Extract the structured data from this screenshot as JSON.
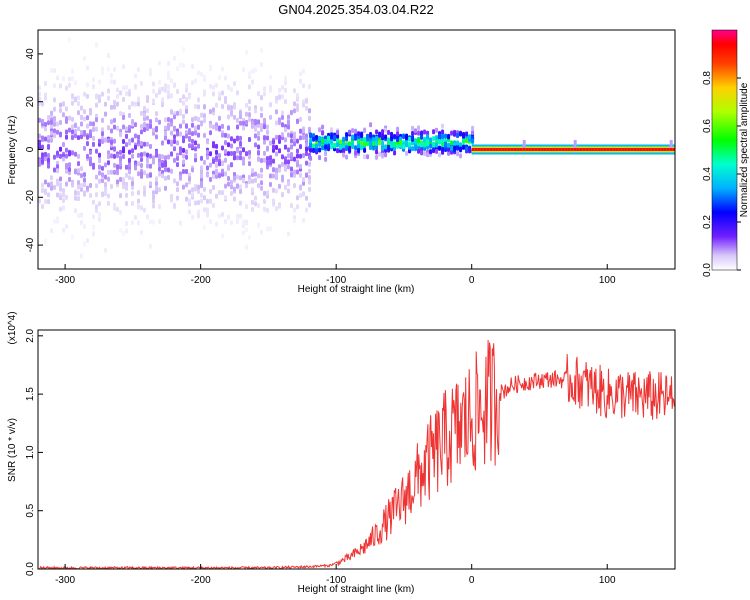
{
  "figure": {
    "title": "GN04.2025.354.03.04.R22"
  },
  "chart_data": [
    {
      "type": "heatmap",
      "xlabel": "Height of straight line (km)",
      "ylabel": "Frequency (Hz)",
      "xlim": [
        -320,
        150
      ],
      "ylim": [
        -50,
        50
      ],
      "xticks": [
        -300,
        -200,
        -100,
        0,
        100
      ],
      "yticks": [
        -40,
        -20,
        0,
        20,
        40
      ],
      "colorbar": {
        "label": "Normalized spectral amplitude",
        "range": [
          0,
          1
        ],
        "ticks": [
          "0.0",
          "0.2",
          "0.4",
          "0.6",
          "0.8"
        ],
        "colormap": "rainbow (violet low → magenta high)"
      },
      "description_regions": [
        {
          "x_range": [
            -320,
            -120
          ],
          "freq_center": 0,
          "freq_spread": 50,
          "amplitude": 0.12
        },
        {
          "x_range": [
            -120,
            0
          ],
          "freq_center": 3,
          "freq_spread": 8,
          "amplitude": 0.55
        },
        {
          "x_range": [
            0,
            150
          ],
          "freq_center": 0,
          "freq_spread": 1,
          "amplitude": 0.95
        }
      ],
      "grid": false
    },
    {
      "type": "line",
      "xlabel": "Height of straight line (km)",
      "ylabel": "SNR (10 * v/v)",
      "yscale_note": "(x10^4)",
      "xlim": [
        -320,
        150
      ],
      "ylim": [
        0,
        2.05
      ],
      "xticks": [
        -300,
        -200,
        -100,
        0,
        100
      ],
      "yticks": [
        "0.0",
        "0.5",
        "1.0",
        "1.5",
        "2.0"
      ],
      "series_color": "#ee3333",
      "x": [
        -320,
        -300,
        -250,
        -200,
        -150,
        -120,
        -105,
        -100,
        -90,
        -80,
        -70,
        -60,
        -50,
        -40,
        -30,
        -20,
        -10,
        0,
        10,
        20,
        30,
        40,
        50,
        60,
        70,
        80,
        90,
        100,
        110,
        120,
        130,
        140,
        150
      ],
      "y": [
        0.01,
        0.01,
        0.01,
        0.01,
        0.01,
        0.02,
        0.03,
        0.05,
        0.1,
        0.18,
        0.3,
        0.45,
        0.6,
        0.78,
        0.95,
        1.1,
        1.2,
        1.3,
        1.4,
        1.5,
        1.58,
        1.6,
        1.62,
        1.63,
        1.62,
        1.6,
        1.55,
        1.5,
        1.5,
        1.48,
        1.48,
        1.47,
        1.45
      ],
      "grid": false
    }
  ]
}
